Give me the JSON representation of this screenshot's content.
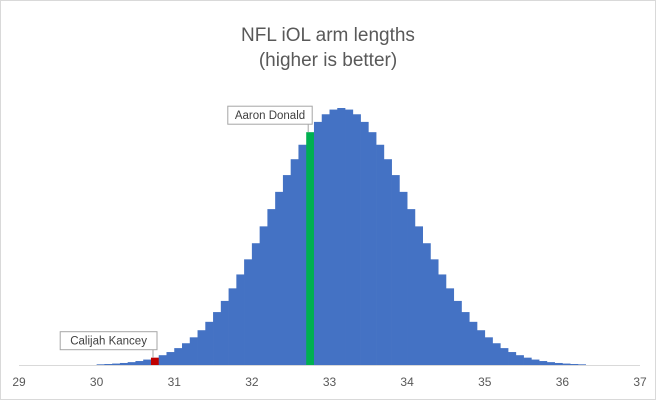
{
  "chart_data": {
    "type": "bar",
    "title": "NFL iOL arm lengths",
    "subtitle": "(higher is better)",
    "xlabel": "",
    "ylabel": "",
    "xlim": [
      29,
      37
    ],
    "x_ticks": [
      "29",
      "30",
      "31",
      "32",
      "33",
      "34",
      "35",
      "36",
      "37"
    ],
    "bin_width": 0.1,
    "distribution": {
      "mean": 33.15,
      "sd": 0.9
    },
    "grid": false,
    "legend": "none",
    "colors": {
      "bars": "#4472c4",
      "highlight_top": "#00b050",
      "highlight_low": "#c00000"
    },
    "highlights": [
      {
        "label": "Aaron Donald",
        "x": 32.7,
        "color": "#00b050"
      },
      {
        "label": "Calijah Kancey",
        "x": 30.7,
        "color": "#c00000"
      }
    ]
  }
}
